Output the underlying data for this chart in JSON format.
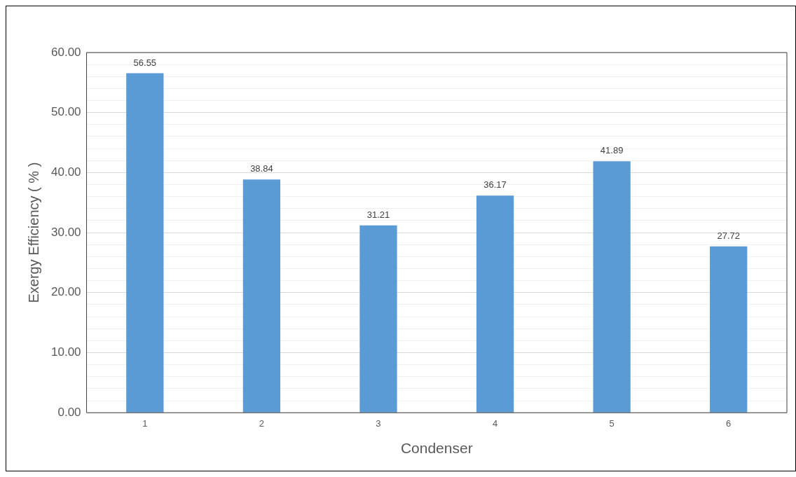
{
  "chart_data": {
    "type": "bar",
    "xlabel": "Condenser",
    "ylabel": "Exergy Efficiency ( % )",
    "categories": [
      "1",
      "2",
      "3",
      "4",
      "5",
      "6"
    ],
    "values": [
      56.55,
      38.84,
      31.21,
      36.17,
      41.89,
      27.72
    ],
    "color": "#5b9bd5",
    "ylim": [
      0,
      60
    ],
    "yticks": [
      {
        "value": 0,
        "label": "0.00"
      },
      {
        "value": 2,
        "label": null
      },
      {
        "value": 4,
        "label": null
      },
      {
        "value": 6,
        "label": null
      },
      {
        "value": 8,
        "label": null
      },
      {
        "value": 10,
        "label": "10.00"
      },
      {
        "value": 12,
        "label": null
      },
      {
        "value": 14,
        "label": null
      },
      {
        "value": 16,
        "label": null
      },
      {
        "value": 18,
        "label": null
      },
      {
        "value": 20,
        "label": "20.00"
      },
      {
        "value": 22,
        "label": null
      },
      {
        "value": 24,
        "label": null
      },
      {
        "value": 26,
        "label": null
      },
      {
        "value": 28,
        "label": null
      },
      {
        "value": 30,
        "label": "30.00"
      },
      {
        "value": 32,
        "label": null
      },
      {
        "value": 34,
        "label": null
      },
      {
        "value": 36,
        "label": null
      },
      {
        "value": 38,
        "label": null
      },
      {
        "value": 40,
        "label": "40.00"
      },
      {
        "value": 42,
        "label": null
      },
      {
        "value": 44,
        "label": null
      },
      {
        "value": 46,
        "label": null
      },
      {
        "value": 48,
        "label": null
      },
      {
        "value": 50,
        "label": "50.00"
      },
      {
        "value": 52,
        "label": null
      },
      {
        "value": 54,
        "label": null
      },
      {
        "value": 56,
        "label": null
      },
      {
        "value": 58,
        "label": null
      },
      {
        "value": 60,
        "label": "60.00"
      }
    ],
    "grid": "y",
    "data_labels": true,
    "legend": false
  }
}
